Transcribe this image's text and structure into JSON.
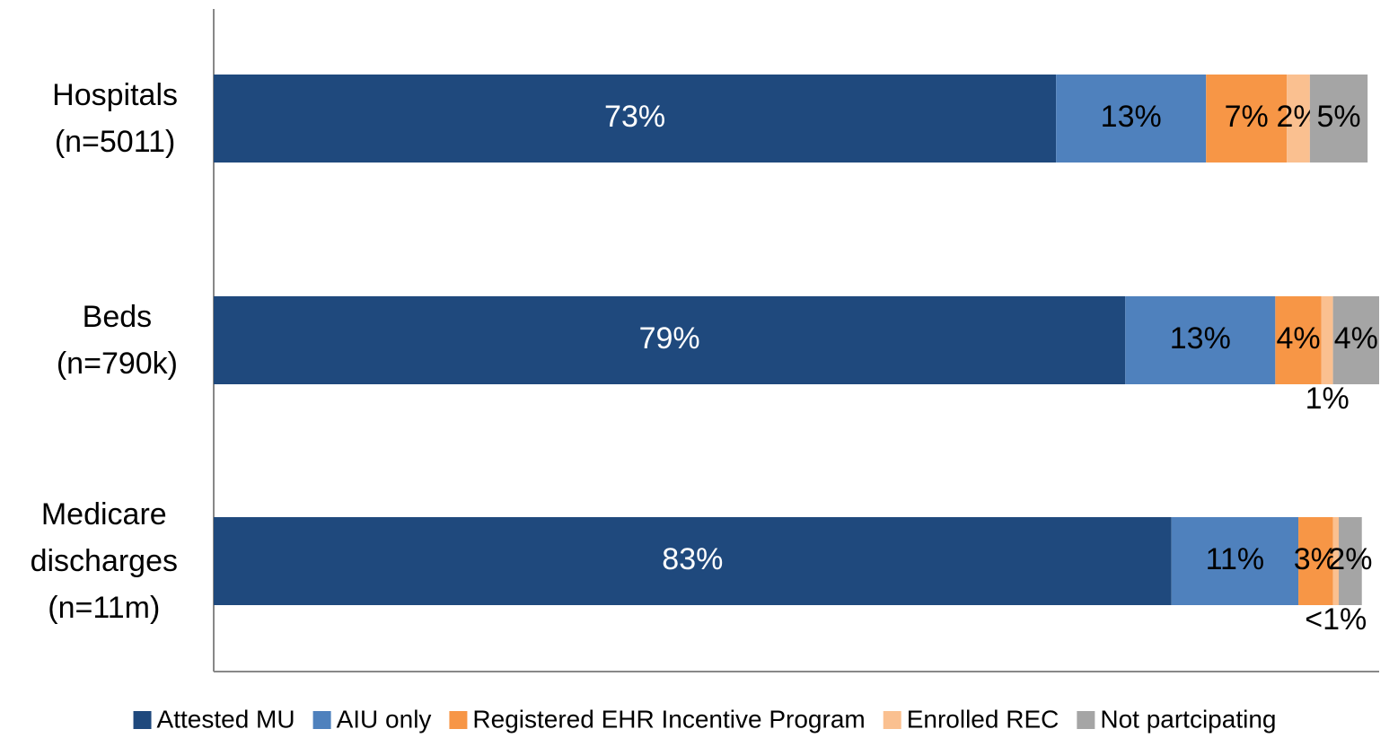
{
  "chart_data": {
    "type": "stacked-bar-horizontal",
    "categories": [
      "Hospitals\n(n=5011)",
      "Beds\n(n=790k)",
      "Medicare\ndischarges\n(n=11m)"
    ],
    "series": [
      {
        "name": "Attested MU",
        "color": "#1f497d",
        "label_color": "#ffffff",
        "values": [
          73,
          79,
          83
        ],
        "value_labels": [
          "73%",
          "79%",
          "83%"
        ]
      },
      {
        "name": "AIU only",
        "color": "#4f81bd",
        "label_color": "#000000",
        "values": [
          13,
          13,
          11
        ],
        "value_labels": [
          "13%",
          "13%",
          "11%"
        ]
      },
      {
        "name": "Registered EHR Incentive Program",
        "color": "#f79646",
        "label_color": "#000000",
        "values": [
          7,
          4,
          3
        ],
        "value_labels": [
          "7%",
          "4%",
          "3%"
        ]
      },
      {
        "name": "Enrolled REC",
        "color": "#fac090",
        "label_color": "#000000",
        "values": [
          2,
          1,
          0.5
        ],
        "value_labels": [
          "2%",
          "1%",
          "<1%"
        ]
      },
      {
        "name": "Not partcipating",
        "color": "#a5a5a5",
        "label_color": "#000000",
        "values": [
          5,
          4,
          2
        ],
        "value_labels": [
          "5%",
          "4%",
          "2%"
        ]
      }
    ],
    "xlim": [
      0,
      101
    ],
    "legend": "bottom"
  }
}
